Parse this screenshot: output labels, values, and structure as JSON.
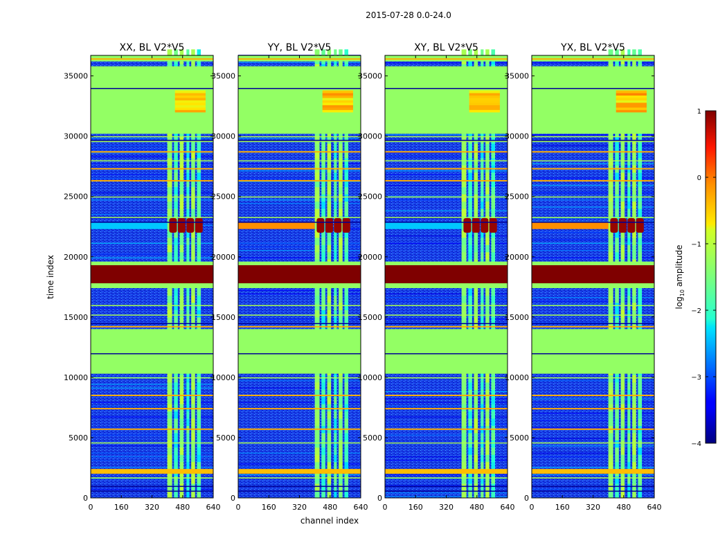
{
  "figure": {
    "suptitle": "2015-07-28 0.0-24.0"
  },
  "chart_data": {
    "type": "heatmap",
    "title": "2015-07-28 0.0-24.0",
    "xlabel": "channel index",
    "ylabel": "time index",
    "xlim": [
      0,
      640
    ],
    "ylim": [
      0,
      36700
    ],
    "x_ticks": [
      0,
      160,
      320,
      480,
      640
    ],
    "y_ticks": [
      0,
      5000,
      10000,
      15000,
      20000,
      25000,
      30000,
      35000
    ],
    "panels": [
      {
        "title": "XX, BL V2*V5",
        "polarization": "XX"
      },
      {
        "title": "YY, BL V2*V5",
        "polarization": "YY"
      },
      {
        "title": "XY, BL V2*V5",
        "polarization": "XY"
      },
      {
        "title": "YX, BL V2*V5",
        "polarization": "YX"
      }
    ],
    "colorbar": {
      "label": "log$_{10}$ amplitude",
      "label_text": "log",
      "label_sub": "10",
      "label_rest": " amplitude",
      "range": [
        -4,
        1
      ],
      "ticks": [
        1,
        0,
        -1,
        -2,
        -3,
        -4
      ],
      "tick_labels": [
        "1",
        "0",
        "−1",
        "−2",
        "−3",
        "−4"
      ],
      "colormap": "jet"
    },
    "flagged_time_blocks": [
      [
        10300,
        14000
      ],
      [
        17400,
        19600
      ],
      [
        30200,
        35800
      ]
    ],
    "saturated_time_block": [
      17800,
      19300
    ],
    "rfi_channel_range": [
      400,
      600
    ],
    "strong_event_time": [
      22000,
      23200
    ]
  }
}
